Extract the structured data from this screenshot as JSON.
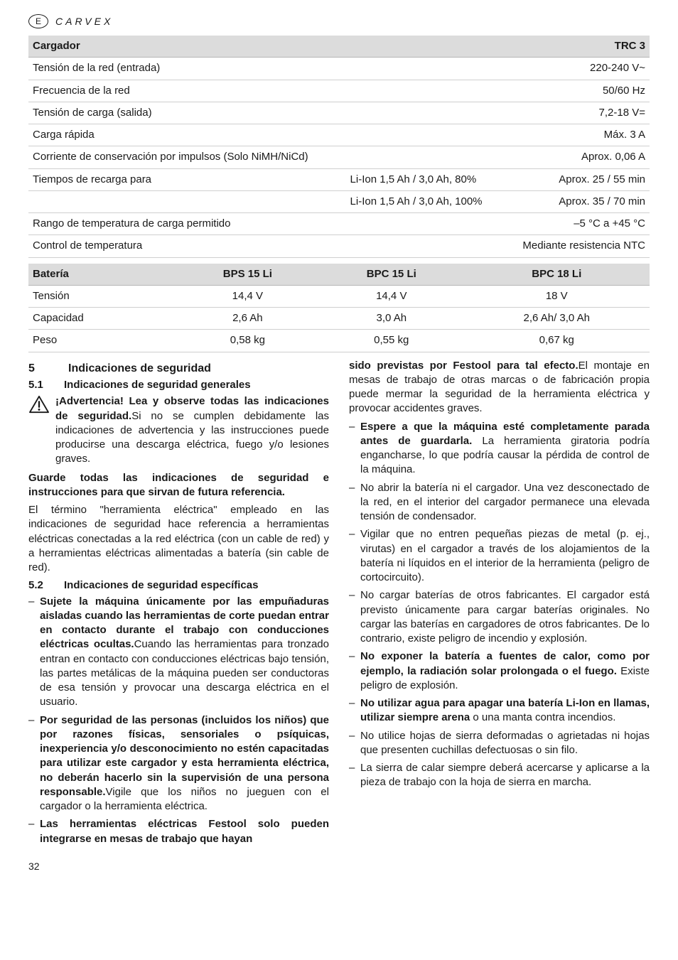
{
  "header": {
    "lang": "E",
    "brand": "CARVEX"
  },
  "charger_table": {
    "head": [
      "Cargador",
      "",
      "TRC 3"
    ],
    "rows": [
      [
        "Tensión de la red (entrada)",
        "",
        "220-240 V~"
      ],
      [
        "Frecuencia de la red",
        "",
        "50/60 Hz"
      ],
      [
        "Tensión de carga (salida)",
        "",
        "7,2-18 V="
      ],
      [
        "Carga rápida",
        "",
        "Máx. 3 A"
      ],
      [
        "Corriente de conservación por impulsos (Solo NiMH/NiCd)",
        "",
        "Aprox. 0,06 A"
      ],
      [
        "Tiempos de recarga para",
        "Li-Ion 1,5 Ah / 3,0 Ah, 80%",
        "Aprox. 25 / 55 min"
      ],
      [
        "",
        "Li-Ion 1,5 Ah / 3,0 Ah, 100%",
        "Aprox. 35 / 70 min"
      ],
      [
        "Rango de temperatura de carga permitido",
        "",
        "–5 °C a +45 °C"
      ],
      [
        "Control de temperatura",
        "",
        "Mediante resistencia NTC"
      ]
    ]
  },
  "battery_table": {
    "head": [
      "Batería",
      "BPS 15 Li",
      "BPC 15 Li",
      "BPC 18 Li"
    ],
    "rows": [
      [
        "Tensión",
        "14,4 V",
        "14,4 V",
        "18 V"
      ],
      [
        "Capacidad",
        "2,6 Ah",
        "3,0 Ah",
        "2,6 Ah/ 3,0 Ah"
      ],
      [
        "Peso",
        "0,58 kg",
        "0,55 kg",
        "0,67 kg"
      ]
    ]
  },
  "s5": {
    "num": "5",
    "title": "Indicaciones de seguridad"
  },
  "s51": {
    "num": "5.1",
    "title": "Indicaciones de seguridad generales",
    "warn_bold": "¡Advertencia! Lea y observe todas las indicaciones de seguridad.",
    "warn_rest": "Si no se cumplen debidamente las indicaciones de advertencia y las instrucciones puede producirse una descarga eléctrica, fuego y/o lesiones graves.",
    "keep": "Guarde todas las indicaciones de seguridad e instrucciones para que sirvan de futura referencia.",
    "term": "El término \"herramienta eléctrica\" empleado en las indicaciones de seguridad hace referencia a herramientas eléctricas conectadas a la red eléctrica (con un cable de red) y a herramientas eléctricas alimentadas a batería (sin cable de red)."
  },
  "s52": {
    "num": "5.2",
    "title": "Indicaciones de seguridad específicas",
    "li1b": "Sujete la máquina únicamente por las empuñaduras aisladas cuando las herramientas de corte puedan entrar en contacto durante el trabajo con conducciones eléctricas ocultas.",
    "li1": "Cuando las herramientas para tronzado entran en contacto con conducciones eléctricas bajo tensión, las partes metálicas de la máquina pueden ser conductoras de esa tensión y provocar una descarga eléctrica en el usuario.",
    "li2b": "Por seguridad de las personas (incluidos los niños) que por razones físicas, sensoriales o psíquicas, inexperiencia y/o desconocimiento no estén capacitadas para utilizar este cargador y esta herramienta eléctrica, no deberán hacerlo sin la supervisión de una persona responsable.",
    "li2": "Vigile que los niños no jueguen con el cargador o la herramienta eléctrica.",
    "li3b_a": "Las herramientas eléctricas Festool solo pueden integrarse en mesas de trabajo que hayan",
    "li3b_b": "sido previstas por Festool para tal efecto.",
    "li3": "El montaje en mesas de trabajo de otras marcas o de fabricación propia puede mermar la seguridad de la herramienta eléctrica y provocar accidentes graves.",
    "li4b": "Espere a que la máquina esté completamente parada antes de guardarla.",
    "li4": " La herramienta giratoria podría engancharse, lo que podría causar la pérdida de control de la máquina.",
    "li5": "No abrir la batería ni el cargador. Una vez desconectado de la red, en el interior del cargador permanece una elevada tensión de condensador.",
    "li6": "Vigilar que no entren pequeñas piezas de metal (p. ej., virutas) en el cargador a través de los alojamientos de la batería ni líquidos en el interior de la herramienta (peligro de cortocircuito).",
    "li7": "No cargar baterías de otros fabricantes. El cargador está previsto únicamente para cargar baterías originales. No cargar las baterías en cargadores de otros fabricantes. De lo contrario, existe peligro de incendio y explosión.",
    "li8b": "No exponer la batería a fuentes de calor, como por ejemplo, la radiación solar prolongada o el fuego.",
    "li8": " Existe peligro de explosión.",
    "li9b": "No utilizar agua para apagar una batería Li-Ion en llamas, utilizar siempre arena",
    "li9": " o una manta contra incendios.",
    "li10": "No utilice hojas de sierra deformadas o agrietadas ni hojas que presenten cuchillas defectuosas o sin filo.",
    "li11": "La sierra de calar siempre deberá acercarse y aplicarse a la pieza de trabajo con la hoja de sierra en marcha."
  },
  "page": "32"
}
